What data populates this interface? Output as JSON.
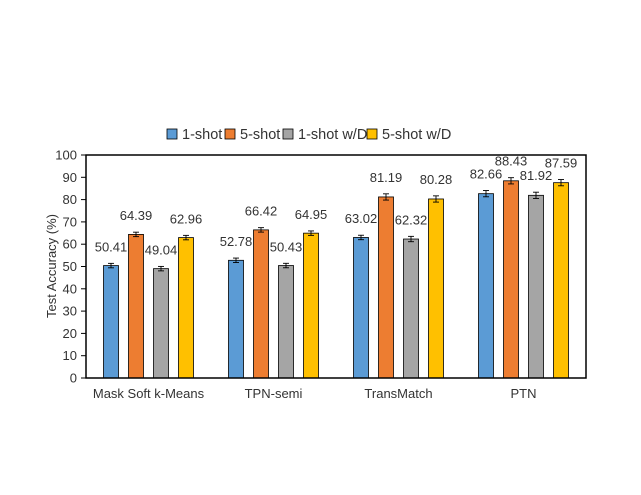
{
  "chart_data": {
    "type": "bar",
    "title": "",
    "xlabel": "",
    "ylabel": "Test Accuracy (%)",
    "ylim": [
      0,
      100
    ],
    "yticks": [
      0,
      10,
      20,
      30,
      40,
      50,
      60,
      70,
      80,
      90,
      100
    ],
    "grid": false,
    "legend_position": "top",
    "categories": [
      "Mask Soft k-Means",
      "TPN-semi",
      "TransMatch",
      "PTN"
    ],
    "series": [
      {
        "name": "1-shot",
        "color": "#5B9BD5",
        "values": [
          50.41,
          52.78,
          63.02,
          82.66
        ],
        "labels": [
          "50.41",
          "52.78",
          "63.02",
          "82.66"
        ],
        "errors": [
          1.0,
          1.0,
          1.0,
          1.4
        ]
      },
      {
        "name": "5-shot",
        "color": "#ED7D31",
        "values": [
          64.39,
          66.42,
          81.19,
          88.43
        ],
        "labels": [
          "64.39",
          "66.42",
          "81.19",
          "88.43"
        ],
        "errors": [
          1.0,
          1.0,
          1.4,
          1.4
        ]
      },
      {
        "name": "1-shot w/D",
        "color": "#A5A5A5",
        "values": [
          49.04,
          50.43,
          62.32,
          81.92
        ],
        "labels": [
          "49.04",
          "50.43",
          "62.32",
          "81.92"
        ],
        "errors": [
          1.0,
          1.0,
          1.2,
          1.4
        ]
      },
      {
        "name": "5-shot w/D",
        "color": "#FFC000",
        "values": [
          62.96,
          64.95,
          80.28,
          87.59
        ],
        "labels": [
          "62.96",
          "64.95",
          "80.28",
          "87.59"
        ],
        "errors": [
          1.0,
          1.0,
          1.4,
          1.4
        ]
      }
    ]
  }
}
